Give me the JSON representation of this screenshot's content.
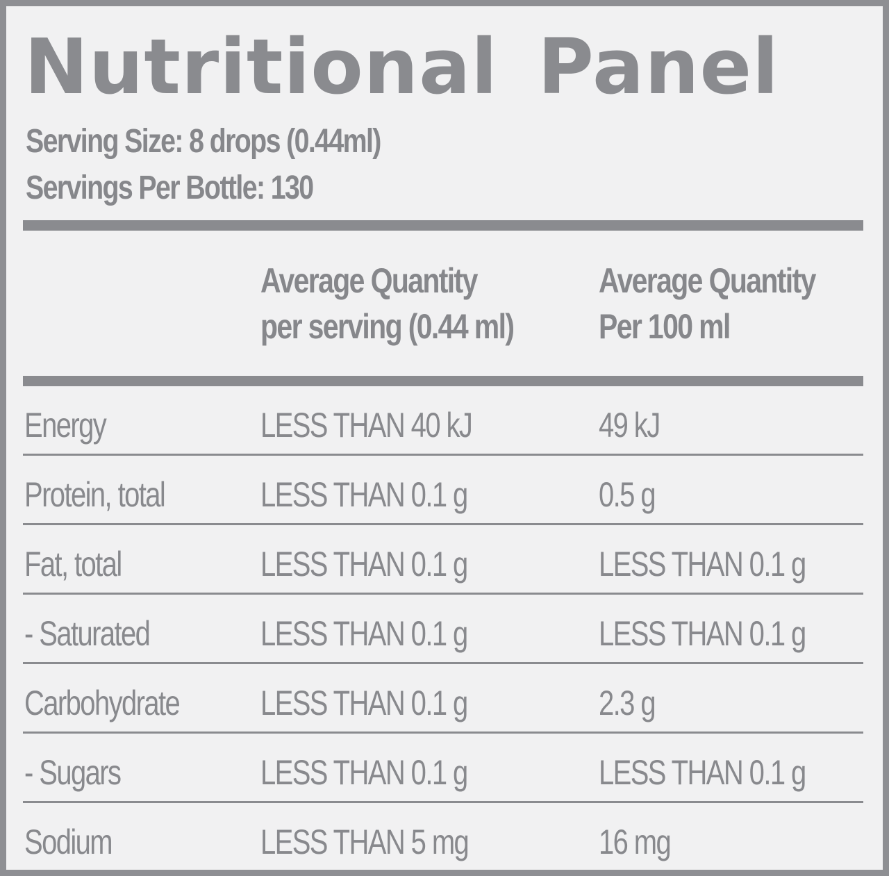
{
  "panel": {
    "title": "Nutritional Panel",
    "serving_size": "Serving Size: 8 drops (0.44ml)",
    "servings_per_bottle": "Servings Per Bottle: 130"
  },
  "columns": {
    "per_serving": [
      "Average Quantity",
      "per serving (0.44 ml)"
    ],
    "per_100ml": [
      "Average Quantity",
      "Per 100 ml"
    ]
  },
  "rows": [
    {
      "nutrient": "Energy",
      "per_serving": "LESS THAN 40 kJ",
      "per_100ml": "49 kJ"
    },
    {
      "nutrient": "Protein, total",
      "per_serving": "LESS THAN 0.1 g",
      "per_100ml": "0.5 g"
    },
    {
      "nutrient": "Fat, total",
      "per_serving": "LESS THAN 0.1 g",
      "per_100ml": "LESS THAN 0.1 g"
    },
    {
      "nutrient": "- Saturated",
      "per_serving": "LESS THAN 0.1 g",
      "per_100ml": "LESS THAN 0.1 g"
    },
    {
      "nutrient": "Carbohydrate",
      "per_serving": "LESS THAN 0.1 g",
      "per_100ml": "2.3 g"
    },
    {
      "nutrient": "- Sugars",
      "per_serving": "LESS THAN 0.1 g",
      "per_100ml": "LESS THAN 0.1 g"
    },
    {
      "nutrient": "Sodium",
      "per_serving": "LESS THAN 5 mg",
      "per_100ml": "16 mg"
    }
  ],
  "colors": {
    "border": "#8e8f93",
    "background": "#f1f1f2",
    "text": "#88898d"
  }
}
